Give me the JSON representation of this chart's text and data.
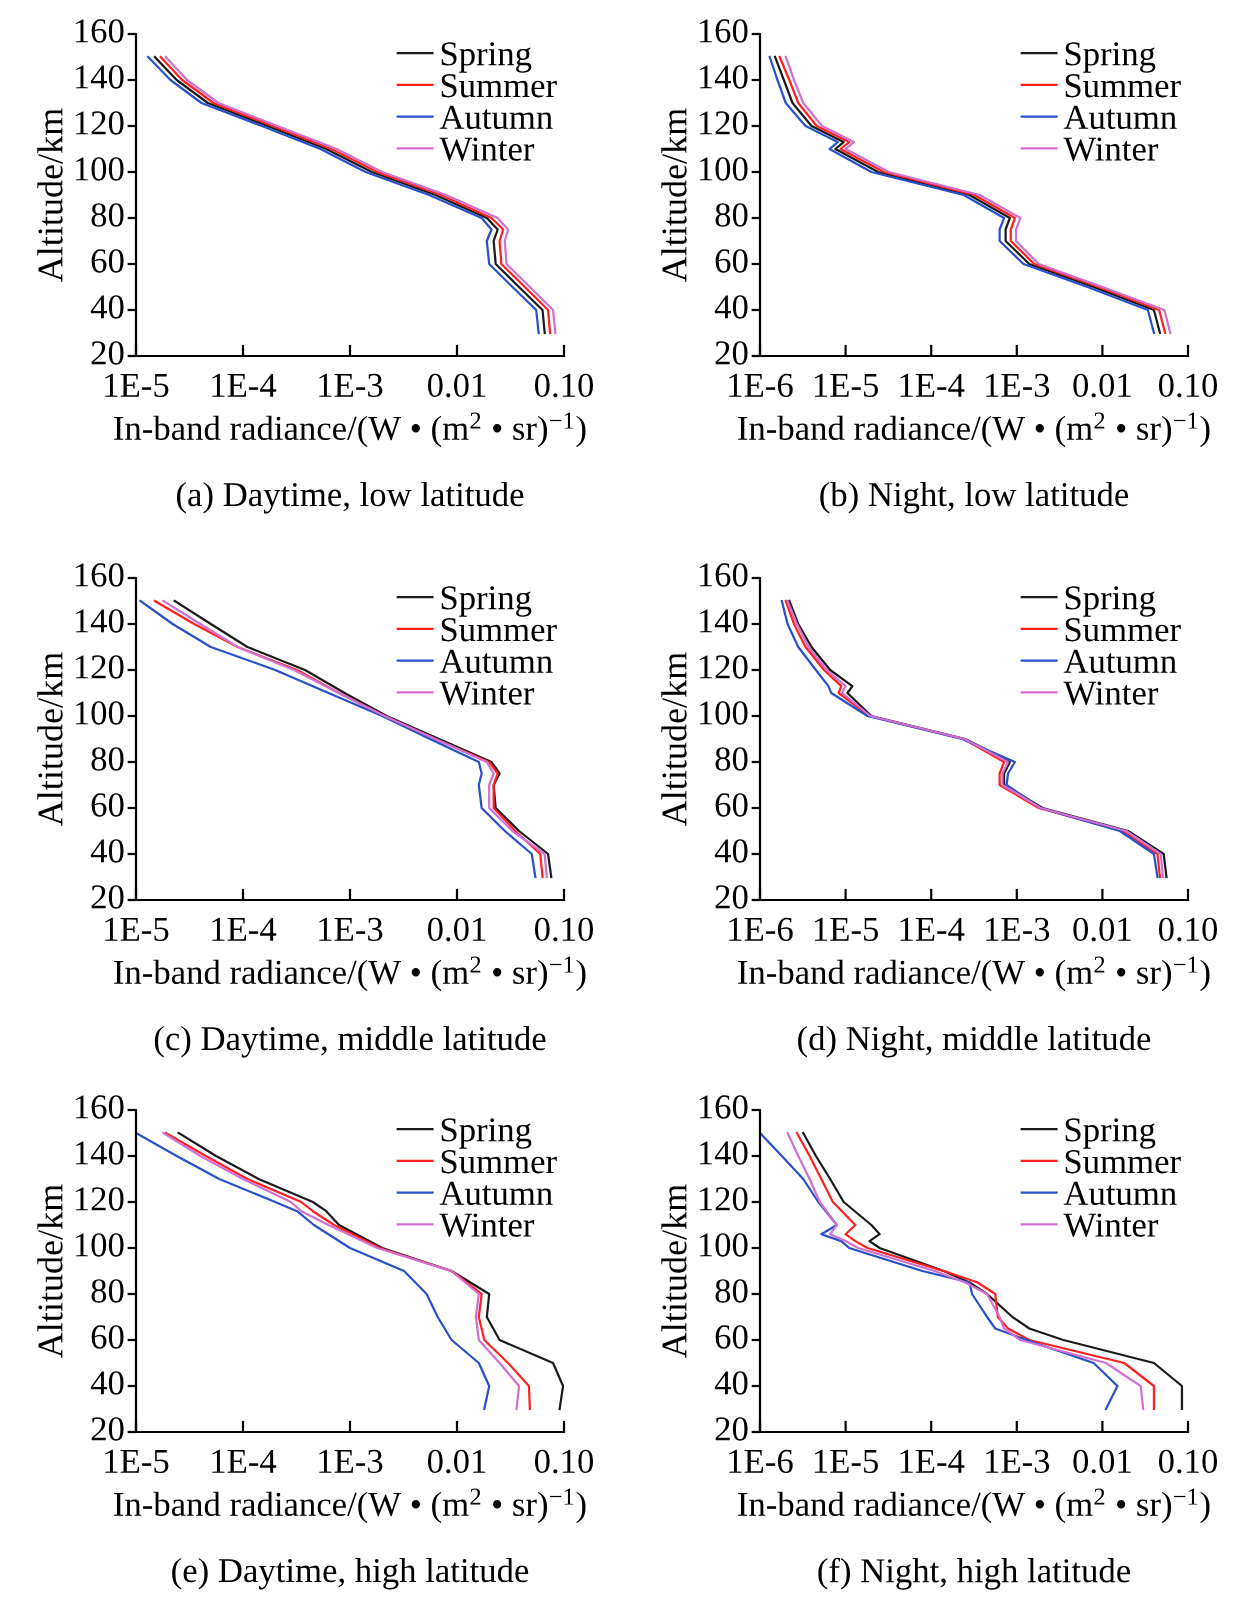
{
  "chart_data": [
    {
      "type": "line",
      "title": "(a) Daytime, low latitude",
      "xlabel": "In-band radiance/(W • (m$^{2}$ • sr)$^{−1}$)",
      "ylabel": "Altitude/km",
      "log": "x",
      "xlim": [
        1e-05,
        0.1
      ],
      "xticks": [
        {
          "value": 1e-05,
          "label": "1E-5"
        },
        {
          "value": 0.0001,
          "label": "1E-4"
        },
        {
          "value": 0.001,
          "label": "1E-3"
        },
        {
          "value": 0.01,
          "label": "0.01"
        },
        {
          "value": 0.1,
          "label": "0.10"
        }
      ],
      "ylim": [
        20,
        160
      ],
      "yticks": [
        20,
        40,
        60,
        80,
        100,
        120,
        140,
        160
      ],
      "legend": "top right",
      "grid": false,
      "series": [
        {
          "name": "Spring",
          "color": "#1a1a1a",
          "x": [
            1.5e-05,
            2.4e-05,
            4.7e-05,
            0.00017,
            0.0006,
            0.0016,
            0.0063,
            0.019,
            0.024,
            0.022,
            0.023,
            0.038,
            0.063,
            0.066
          ],
          "values": [
            150,
            140,
            130,
            120,
            110,
            100,
            90,
            80,
            75,
            70,
            60,
            50,
            40,
            30
          ]
        },
        {
          "name": "Summer",
          "color": "#ff2020",
          "x": [
            1.7e-05,
            2.7e-05,
            5.3e-05,
            0.00019,
            0.00067,
            0.0018,
            0.0071,
            0.021,
            0.027,
            0.025,
            0.026,
            0.043,
            0.071,
            0.074
          ],
          "values": [
            150,
            140,
            130,
            120,
            110,
            100,
            90,
            80,
            75,
            70,
            60,
            50,
            40,
            30
          ]
        },
        {
          "name": "Autumn",
          "color": "#2850c8",
          "x": [
            1.3e-05,
            2.1e-05,
            4.1e-05,
            0.00015,
            0.00053,
            0.0014,
            0.0055,
            0.017,
            0.021,
            0.019,
            0.02,
            0.033,
            0.055,
            0.058
          ],
          "values": [
            150,
            140,
            130,
            120,
            110,
            100,
            90,
            80,
            75,
            70,
            60,
            50,
            40,
            30
          ]
        },
        {
          "name": "Winter",
          "color": "#d070d0",
          "x": [
            1.9e-05,
            3e-05,
            5.9e-05,
            0.00021,
            0.00075,
            0.002,
            0.0079,
            0.024,
            0.03,
            0.028,
            0.029,
            0.048,
            0.079,
            0.083
          ],
          "values": [
            150,
            140,
            130,
            120,
            110,
            100,
            90,
            80,
            75,
            70,
            60,
            50,
            40,
            30
          ]
        }
      ]
    },
    {
      "type": "line",
      "title": "(b) Night, low latitude",
      "xlabel": "In-band radiance/(W • (m$^{2}$ • sr)$^{−1}$)",
      "ylabel": "Altitude/km",
      "log": "x",
      "xlim": [
        1e-06,
        0.1
      ],
      "xticks": [
        {
          "value": 1e-06,
          "label": "1E-6"
        },
        {
          "value": 1e-05,
          "label": "1E-5"
        },
        {
          "value": 0.0001,
          "label": "1E-4"
        },
        {
          "value": 0.001,
          "label": "1E-3"
        },
        {
          "value": 0.01,
          "label": "0.01"
        },
        {
          "value": 0.1,
          "label": "0.10"
        }
      ],
      "ylim": [
        20,
        160
      ],
      "yticks": [
        20,
        40,
        60,
        80,
        100,
        120,
        140,
        160
      ],
      "legend": "top right",
      "grid": false,
      "series": [
        {
          "name": "Spring",
          "color": "#1a1a1a",
          "x": [
            1.5e-06,
            1.9e-06,
            2.4e-06,
            4e-06,
            9.5e-06,
            7.6e-06,
            2.4e-05,
            0.00028,
            0.00083,
            0.00074,
            0.00074,
            0.0014,
            0.0079,
            0.04,
            0.047
          ],
          "values": [
            150,
            140,
            130,
            120,
            113,
            110,
            100,
            90,
            80,
            75,
            70,
            60,
            50,
            40,
            30
          ]
        },
        {
          "name": "Summer",
          "color": "#ff2020",
          "x": [
            1.7e-06,
            2.2e-06,
            2.8e-06,
            4.6e-06,
            1.1e-05,
            8.7e-06,
            2.8e-05,
            0.00032,
            0.00095,
            0.00085,
            0.00085,
            0.0016,
            0.0091,
            0.046,
            0.054
          ],
          "values": [
            150,
            140,
            130,
            120,
            113,
            110,
            100,
            90,
            80,
            75,
            70,
            60,
            50,
            40,
            30
          ]
        },
        {
          "name": "Autumn",
          "color": "#2850c8",
          "x": [
            1.3e-06,
            1.6e-06,
            2e-06,
            3.4e-06,
            8.1e-06,
            6.5e-06,
            2e-05,
            0.00024,
            0.00071,
            0.00063,
            0.00063,
            0.0012,
            0.0067,
            0.034,
            0.04
          ],
          "values": [
            150,
            140,
            130,
            120,
            113,
            110,
            100,
            90,
            80,
            75,
            70,
            60,
            50,
            40,
            30
          ]
        },
        {
          "name": "Winter",
          "color": "#d070d0",
          "x": [
            2e-06,
            2.5e-06,
            3.2e-06,
            5.3e-06,
            1.25e-05,
            1e-05,
            3.2e-05,
            0.00037,
            0.0011,
            0.00098,
            0.00098,
            0.0018,
            0.01,
            0.053,
            0.062
          ],
          "values": [
            150,
            140,
            130,
            120,
            113,
            110,
            100,
            90,
            80,
            75,
            70,
            60,
            50,
            40,
            30
          ]
        }
      ]
    },
    {
      "type": "line",
      "title": "(c) Daytime, middle latitude",
      "xlabel": "In-band radiance/(W • (m$^{2}$ • sr)$^{−1}$)",
      "ylabel": "Altitude/km",
      "log": "x",
      "xlim": [
        1e-05,
        0.1
      ],
      "xticks": [
        {
          "value": 1e-05,
          "label": "1E-5"
        },
        {
          "value": 0.0001,
          "label": "1E-4"
        },
        {
          "value": 0.001,
          "label": "1E-3"
        },
        {
          "value": 0.01,
          "label": "0.01"
        },
        {
          "value": 0.1,
          "label": "0.10"
        }
      ],
      "ylim": [
        20,
        160
      ],
      "yticks": [
        20,
        40,
        60,
        80,
        100,
        120,
        140,
        160
      ],
      "legend": "top right",
      "grid": false,
      "series": [
        {
          "name": "Spring",
          "color": "#1a1a1a",
          "x": [
            2.3e-05,
            5e-05,
            0.00011,
            0.00038,
            0.00089,
            0.0022,
            0.0068,
            0.021,
            0.025,
            0.022,
            0.023,
            0.038,
            0.071,
            0.076
          ],
          "values": [
            150,
            140,
            130,
            120,
            110,
            100,
            90,
            80,
            75,
            70,
            60,
            50,
            40,
            30
          ]
        },
        {
          "name": "Summer",
          "color": "#ff2020",
          "x": [
            1.5e-05,
            3.5e-05,
            8.9e-05,
            0.00032,
            0.00079,
            0.0021,
            0.0063,
            0.02,
            0.024,
            0.022,
            0.022,
            0.035,
            0.06,
            0.063
          ],
          "values": [
            150,
            140,
            130,
            120,
            110,
            100,
            90,
            80,
            75,
            70,
            60,
            50,
            40,
            30
          ]
        },
        {
          "name": "Autumn",
          "color": "#2850c8",
          "x": [
            1.1e-05,
            2.2e-05,
            5e-05,
            0.0002,
            0.00063,
            0.002,
            0.0056,
            0.016,
            0.017,
            0.016,
            0.017,
            0.028,
            0.05,
            0.054
          ],
          "values": [
            150,
            140,
            130,
            120,
            110,
            100,
            90,
            80,
            75,
            70,
            60,
            50,
            40,
            30
          ]
        },
        {
          "name": "Winter",
          "color": "#d070d0",
          "x": [
            1.8e-05,
            4e-05,
            8.9e-05,
            0.0003,
            0.00079,
            0.0021,
            0.0063,
            0.019,
            0.022,
            0.02,
            0.02,
            0.033,
            0.066,
            0.069
          ],
          "values": [
            150,
            140,
            130,
            120,
            110,
            100,
            90,
            80,
            75,
            70,
            60,
            50,
            40,
            30
          ]
        }
      ]
    },
    {
      "type": "line",
      "title": "(d) Night, middle latitude",
      "xlabel": "In-band radiance/(W • (m$^{2}$ • sr)$^{−1}$)",
      "ylabel": "Altitude/km",
      "log": "x",
      "xlim": [
        1e-06,
        0.1
      ],
      "xticks": [
        {
          "value": 1e-06,
          "label": "1E-6"
        },
        {
          "value": 1e-05,
          "label": "1E-5"
        },
        {
          "value": 0.0001,
          "label": "1E-4"
        },
        {
          "value": 0.001,
          "label": "1E-3"
        },
        {
          "value": 0.01,
          "label": "0.01"
        },
        {
          "value": 0.1,
          "label": "0.10"
        }
      ],
      "ylim": [
        20,
        160
      ],
      "yticks": [
        20,
        40,
        60,
        80,
        100,
        120,
        140,
        160
      ],
      "legend": "top right",
      "grid": false,
      "series": [
        {
          "name": "Spring",
          "color": "#1a1a1a",
          "x": [
            2.2e-06,
            2.8e-06,
            4e-06,
            6.6e-06,
            1.2e-05,
            1.05e-05,
            2e-05,
            0.00025,
            0.00083,
            0.00071,
            0.00071,
            0.002,
            0.02,
            0.052,
            0.056
          ],
          "values": [
            150,
            140,
            130,
            120,
            113,
            110,
            100,
            90,
            80,
            75,
            70,
            60,
            50,
            40,
            30
          ]
        },
        {
          "name": "Summer",
          "color": "#ff2020",
          "x": [
            2e-06,
            2.5e-06,
            3.4e-06,
            5.6e-06,
            8.9e-06,
            8.3e-06,
            1.9e-05,
            0.00024,
            0.00071,
            0.00063,
            0.00063,
            0.0018,
            0.017,
            0.044,
            0.047
          ],
          "values": [
            150,
            140,
            130,
            120,
            113,
            110,
            100,
            90,
            80,
            75,
            70,
            60,
            50,
            40,
            30
          ]
        },
        {
          "name": "Autumn",
          "color": "#2850c8",
          "x": [
            1.8e-06,
            2.1e-06,
            2.8e-06,
            4.5e-06,
            6.3e-06,
            6.8e-06,
            1.8e-05,
            0.00023,
            0.00095,
            0.00079,
            0.00076,
            0.0019,
            0.016,
            0.04,
            0.044
          ],
          "values": [
            150,
            140,
            130,
            120,
            113,
            110,
            100,
            90,
            80,
            75,
            70,
            60,
            50,
            40,
            30
          ]
        },
        {
          "name": "Winter",
          "color": "#d070d0",
          "x": [
            2.1e-06,
            2.7e-06,
            3.7e-06,
            6e-06,
            1e-05,
            9.1e-06,
            1.95e-05,
            0.000245,
            0.00079,
            0.00068,
            0.00068,
            0.0019,
            0.019,
            0.048,
            0.051
          ],
          "values": [
            150,
            140,
            130,
            120,
            113,
            110,
            100,
            90,
            80,
            75,
            70,
            60,
            50,
            40,
            30
          ]
        }
      ]
    },
    {
      "type": "line",
      "title": "(e) Daytime, high latitude",
      "xlabel": "In-band radiance/(W • (m$^{2}$ • sr)$^{−1}$)",
      "ylabel": "Altitude/km",
      "log": "x",
      "xlim": [
        1e-05,
        0.1
      ],
      "xticks": [
        {
          "value": 1e-05,
          "label": "1E-5"
        },
        {
          "value": 0.0001,
          "label": "1E-4"
        },
        {
          "value": 0.001,
          "label": "1E-3"
        },
        {
          "value": 0.01,
          "label": "0.01"
        },
        {
          "value": 0.1,
          "label": "0.10"
        }
      ],
      "ylim": [
        20,
        160
      ],
      "yticks": [
        20,
        40,
        60,
        80,
        100,
        120,
        140,
        160
      ],
      "legend": "top right",
      "grid": false,
      "series": [
        {
          "name": "Spring",
          "color": "#1a1a1a",
          "x": [
            2.5e-05,
            5.6e-05,
            0.00014,
            0.00045,
            0.0006,
            0.00079,
            0.002,
            0.0089,
            0.02,
            0.019,
            0.025,
            0.079,
            0.098,
            0.091
          ],
          "values": [
            150,
            140,
            130,
            120,
            116,
            110,
            100,
            90,
            80,
            70,
            60,
            50,
            40,
            30
          ]
        },
        {
          "name": "Summer",
          "color": "#ff2020",
          "x": [
            1.9e-05,
            4.5e-05,
            0.00011,
            0.00035,
            0.00045,
            0.00071,
            0.0019,
            0.0089,
            0.017,
            0.016,
            0.018,
            0.03,
            0.047,
            0.048
          ],
          "values": [
            150,
            140,
            130,
            120,
            116,
            110,
            100,
            90,
            80,
            70,
            60,
            50,
            40,
            30
          ]
        },
        {
          "name": "Autumn",
          "color": "#2850c8",
          "x": [
            1e-05,
            2.4e-05,
            6e-05,
            0.0002,
            0.00032,
            0.00046,
            0.001,
            0.0032,
            0.0052,
            0.0066,
            0.0089,
            0.016,
            0.02,
            0.018
          ],
          "values": [
            150,
            140,
            130,
            120,
            116,
            110,
            100,
            90,
            80,
            70,
            60,
            50,
            40,
            30
          ]
        },
        {
          "name": "Winter",
          "color": "#d070d0",
          "x": [
            1.8e-05,
            4e-05,
            0.0001,
            0.00028,
            0.00035,
            0.00063,
            0.0018,
            0.0089,
            0.016,
            0.015,
            0.016,
            0.025,
            0.038,
            0.036
          ],
          "values": [
            150,
            140,
            130,
            120,
            116,
            110,
            100,
            90,
            80,
            70,
            60,
            50,
            40,
            30
          ]
        }
      ]
    },
    {
      "type": "line",
      "title": "(f) Night, high latitude",
      "xlabel": "In-band radiance/(W • (m$^{2}$ • sr)$^{−1}$)",
      "ylabel": "Altitude/km",
      "log": "x",
      "xlim": [
        1e-06,
        0.1
      ],
      "xticks": [
        {
          "value": 1e-06,
          "label": "1E-6"
        },
        {
          "value": 1e-05,
          "label": "1E-5"
        },
        {
          "value": 0.0001,
          "label": "1E-4"
        },
        {
          "value": 0.001,
          "label": "1E-3"
        },
        {
          "value": 0.01,
          "label": "0.01"
        },
        {
          "value": 0.1,
          "label": "0.10"
        }
      ],
      "ylim": [
        20,
        160
      ],
      "yticks": [
        20,
        40,
        60,
        80,
        100,
        120,
        140,
        160
      ],
      "legend": "top right",
      "grid": false,
      "series": [
        {
          "name": "Spring",
          "color": "#1a1a1a",
          "x": [
            3.2e-06,
            4.5e-06,
            6.6e-06,
            9.5e-06,
            2e-05,
            2.5e-05,
            1.9e-05,
            2.5e-05,
            0.00014,
            0.00028,
            0.00045,
            0.00089,
            0.0014,
            0.0035,
            0.04,
            0.085,
            0.085
          ],
          "values": [
            150,
            140,
            130,
            120,
            110,
            106,
            103,
            100,
            90,
            85,
            80,
            70,
            65,
            60,
            50,
            40,
            30
          ]
        },
        {
          "name": "Summer",
          "color": "#ff2020",
          "x": [
            2.7e-06,
            3.8e-06,
            5.2e-06,
            7.1e-06,
            1.3e-05,
            1e-05,
            1.3e-05,
            1.8e-05,
            0.00014,
            0.00035,
            0.00056,
            0.0006,
            0.00079,
            0.0014,
            0.018,
            0.04,
            0.04
          ],
          "values": [
            150,
            140,
            130,
            120,
            110,
            106,
            103,
            100,
            90,
            85,
            80,
            70,
            65,
            60,
            50,
            40,
            30
          ]
        },
        {
          "name": "Autumn",
          "color": "#2850c8",
          "x": [
            1e-06,
            1.8e-06,
            3.2e-06,
            4.8e-06,
            7.9e-06,
            5.2e-06,
            8.9e-06,
            1.1e-05,
            7.9e-05,
            0.00028,
            0.0003,
            0.00045,
            0.00056,
            0.0013,
            0.0079,
            0.015,
            0.011
          ],
          "values": [
            150,
            140,
            130,
            120,
            110,
            106,
            103,
            100,
            90,
            85,
            80,
            70,
            65,
            60,
            50,
            40,
            30
          ]
        },
        {
          "name": "Winter",
          "color": "#d070d0",
          "x": [
            2.1e-06,
            2.8e-06,
            3.8e-06,
            5e-06,
            7.9e-06,
            6.6e-06,
            1e-05,
            1.4e-05,
            0.00011,
            0.00025,
            0.00045,
            0.00063,
            0.00071,
            0.0011,
            0.011,
            0.028,
            0.03
          ],
          "values": [
            150,
            140,
            130,
            120,
            110,
            106,
            103,
            100,
            90,
            85,
            80,
            70,
            65,
            60,
            50,
            40,
            30
          ]
        }
      ]
    }
  ]
}
